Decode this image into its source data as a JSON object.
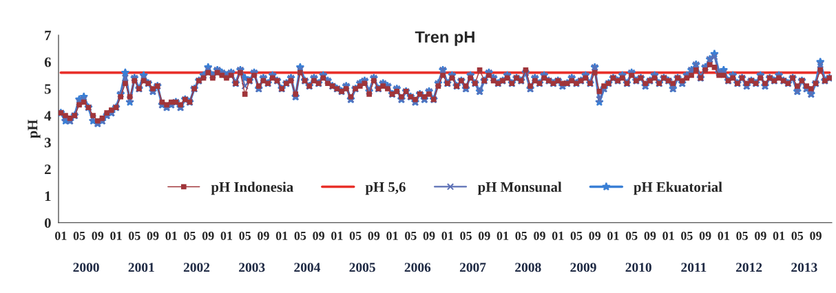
{
  "chart_data": {
    "type": "line",
    "title": "Tren pH",
    "ylabel": "pH",
    "categories": [
      "01",
      null,
      null,
      null,
      "05",
      null,
      null,
      null,
      "09",
      null,
      null,
      null,
      "01",
      null,
      null,
      null,
      "05",
      null,
      null,
      null,
      "09",
      null,
      null,
      null,
      "01",
      null,
      null,
      null,
      "05",
      null,
      null,
      null,
      "09",
      null,
      null,
      null,
      "01",
      null,
      null,
      null,
      "05",
      null,
      null,
      null,
      "09",
      null,
      null,
      null,
      "01",
      null,
      null,
      null,
      "05",
      null,
      null,
      null,
      "09",
      null,
      null,
      null,
      "01",
      null,
      null,
      null,
      "05",
      null,
      null,
      null,
      "09",
      null,
      null,
      null,
      "01",
      null,
      null,
      null,
      "05",
      null,
      null,
      null,
      "09",
      null,
      null,
      null,
      "01",
      null,
      null,
      null,
      "05",
      null,
      null,
      null,
      "09",
      null,
      null,
      null,
      "01",
      null,
      null,
      null,
      "05",
      null,
      null,
      null,
      "09",
      null,
      null,
      null,
      "01",
      null,
      null,
      null,
      "05",
      null,
      null,
      null,
      "09",
      null,
      null,
      null,
      "01",
      null,
      null,
      null,
      "05",
      null,
      null,
      null,
      "09",
      null,
      null,
      null,
      "01",
      null,
      null,
      null,
      "05",
      null,
      null,
      null,
      "09",
      null,
      null,
      null,
      "01",
      null,
      null,
      null,
      "05",
      null,
      null,
      null,
      "09",
      null,
      null,
      null,
      "01",
      null,
      null,
      null,
      "05",
      null,
      null,
      null,
      "09",
      null,
      null,
      null
    ],
    "annotations": [
      "2000",
      "2001",
      "2002",
      "2003",
      "2004",
      "2005",
      "2006",
      "2007",
      "2008",
      "2009",
      "2010",
      "2011",
      "2012",
      "2013"
    ],
    "series": [
      {
        "name": "pH Indonesia",
        "color": "#a0353a",
        "marker": "square",
        "values": [
          4.1,
          4.0,
          3.9,
          4.0,
          4.4,
          4.5,
          4.3,
          4.0,
          3.8,
          3.9,
          4.1,
          4.2,
          4.3,
          4.7,
          5.2,
          4.7,
          5.3,
          5.0,
          5.3,
          5.2,
          5.0,
          5.1,
          4.5,
          4.4,
          4.5,
          4.5,
          4.4,
          4.6,
          4.5,
          5.0,
          5.3,
          5.4,
          5.6,
          5.4,
          5.6,
          5.5,
          5.4,
          5.5,
          5.2,
          5.6,
          4.8,
          5.3,
          5.5,
          5.1,
          5.3,
          5.2,
          5.4,
          5.3,
          5.0,
          5.2,
          5.3,
          4.8,
          5.6,
          5.3,
          5.1,
          5.3,
          5.2,
          5.4,
          5.2,
          5.1,
          5.0,
          4.9,
          5.0,
          4.7,
          5.0,
          5.1,
          5.2,
          4.8,
          5.3,
          5.0,
          5.1,
          5.0,
          4.8,
          4.9,
          4.7,
          4.9,
          4.7,
          4.6,
          4.8,
          4.7,
          4.8,
          4.6,
          5.1,
          5.5,
          5.2,
          5.4,
          5.1,
          5.3,
          5.1,
          5.4,
          5.2,
          5.7,
          5.3,
          5.5,
          5.3,
          5.2,
          5.3,
          5.4,
          5.2,
          5.4,
          5.3,
          5.7,
          5.1,
          5.3,
          5.2,
          5.4,
          5.3,
          5.2,
          5.3,
          5.2,
          5.2,
          5.3,
          5.2,
          5.3,
          5.4,
          5.2,
          5.6,
          4.9,
          5.1,
          5.2,
          5.4,
          5.3,
          5.4,
          5.2,
          5.5,
          5.3,
          5.4,
          5.2,
          5.3,
          5.4,
          5.2,
          5.4,
          5.3,
          5.2,
          5.4,
          5.3,
          5.4,
          5.5,
          5.7,
          5.4,
          5.7,
          5.9,
          5.8,
          5.5,
          5.5,
          5.3,
          5.4,
          5.2,
          5.4,
          5.2,
          5.3,
          5.2,
          5.4,
          5.2,
          5.4,
          5.3,
          5.4,
          5.3,
          5.2,
          5.4,
          5.1,
          5.3,
          5.1,
          5.0,
          5.2,
          5.7,
          5.3,
          5.4
        ]
      },
      {
        "name": "pH 5,6",
        "color": "#e8302a",
        "marker": "none",
        "values": [
          5.6,
          5.6,
          5.6,
          5.6,
          5.6,
          5.6,
          5.6,
          5.6,
          5.6,
          5.6,
          5.6,
          5.6,
          5.6,
          5.6,
          5.6,
          5.6,
          5.6,
          5.6,
          5.6,
          5.6,
          5.6,
          5.6,
          5.6,
          5.6,
          5.6,
          5.6,
          5.6,
          5.6,
          5.6,
          5.6,
          5.6,
          5.6,
          5.6,
          5.6,
          5.6,
          5.6,
          5.6,
          5.6,
          5.6,
          5.6,
          5.6,
          5.6,
          5.6,
          5.6,
          5.6,
          5.6,
          5.6,
          5.6,
          5.6,
          5.6,
          5.6,
          5.6,
          5.6,
          5.6,
          5.6,
          5.6,
          5.6,
          5.6,
          5.6,
          5.6,
          5.6,
          5.6,
          5.6,
          5.6,
          5.6,
          5.6,
          5.6,
          5.6,
          5.6,
          5.6,
          5.6,
          5.6,
          5.6,
          5.6,
          5.6,
          5.6,
          5.6,
          5.6,
          5.6,
          5.6,
          5.6,
          5.6,
          5.6,
          5.6,
          5.6,
          5.6,
          5.6,
          5.6,
          5.6,
          5.6,
          5.6,
          5.6,
          5.6,
          5.6,
          5.6,
          5.6,
          5.6,
          5.6,
          5.6,
          5.6,
          5.6,
          5.6,
          5.6,
          5.6,
          5.6,
          5.6,
          5.6,
          5.6,
          5.6,
          5.6,
          5.6,
          5.6,
          5.6,
          5.6,
          5.6,
          5.6,
          5.6,
          5.6,
          5.6,
          5.6,
          5.6,
          5.6,
          5.6,
          5.6,
          5.6,
          5.6,
          5.6,
          5.6,
          5.6,
          5.6,
          5.6,
          5.6,
          5.6,
          5.6,
          5.6,
          5.6,
          5.6,
          5.6,
          5.6,
          5.6,
          5.6,
          5.6,
          5.6,
          5.6,
          5.6,
          5.6,
          5.6,
          5.6,
          5.6,
          5.6,
          5.6,
          5.6,
          5.6,
          5.6,
          5.6,
          5.6,
          5.6,
          5.6,
          5.6,
          5.6,
          5.6,
          5.6,
          5.6,
          5.6,
          5.6,
          5.6,
          5.6,
          5.6
        ]
      },
      {
        "name": "pH Monsunal",
        "color": "#5b6fb5",
        "marker": "cross",
        "values": [
          4.1,
          3.9,
          3.8,
          4.0,
          4.5,
          4.6,
          4.3,
          3.9,
          3.7,
          3.8,
          4.0,
          4.1,
          4.3,
          4.8,
          5.4,
          4.6,
          5.4,
          5.0,
          5.4,
          5.2,
          4.9,
          5.1,
          4.4,
          4.3,
          4.4,
          4.5,
          4.3,
          4.6,
          4.5,
          5.0,
          5.3,
          5.5,
          5.7,
          5.5,
          5.7,
          5.6,
          5.5,
          5.6,
          5.2,
          5.7,
          5.1,
          5.3,
          5.6,
          5.0,
          5.4,
          5.2,
          5.5,
          5.3,
          5.0,
          5.2,
          5.4,
          4.7,
          5.7,
          5.3,
          5.1,
          5.4,
          5.2,
          5.5,
          5.3,
          5.1,
          5.0,
          4.9,
          5.1,
          4.6,
          5.0,
          5.2,
          5.3,
          4.9,
          5.4,
          5.0,
          5.2,
          5.1,
          4.8,
          5.0,
          4.6,
          4.9,
          4.7,
          4.5,
          4.8,
          4.6,
          4.9,
          4.6,
          5.2,
          5.7,
          5.2,
          5.5,
          5.1,
          5.3,
          5.0,
          5.5,
          5.2,
          4.9,
          5.3,
          5.6,
          5.4,
          5.2,
          5.3,
          5.5,
          5.2,
          5.4,
          5.3,
          5.6,
          5.0,
          5.4,
          5.2,
          5.5,
          5.3,
          5.2,
          5.3,
          5.1,
          5.2,
          5.4,
          5.2,
          5.3,
          5.5,
          5.2,
          5.8,
          4.6,
          5.0,
          5.2,
          5.4,
          5.3,
          5.5,
          5.2,
          5.6,
          5.3,
          5.4,
          5.1,
          5.3,
          5.5,
          5.2,
          5.4,
          5.3,
          5.0,
          5.4,
          5.2,
          5.5,
          5.7,
          5.9,
          5.4,
          5.8,
          6.1,
          6.2,
          5.6,
          5.6,
          5.3,
          5.5,
          5.2,
          5.4,
          5.1,
          5.3,
          5.2,
          5.5,
          5.1,
          5.4,
          5.3,
          5.5,
          5.3,
          5.2,
          5.4,
          4.9,
          5.3,
          5.0,
          4.8,
          5.2,
          5.9,
          5.3,
          5.4
        ]
      },
      {
        "name": "pH Ekuatorial",
        "color": "#3a7fd5",
        "marker": "star",
        "values": [
          4.1,
          3.8,
          3.8,
          4.0,
          4.6,
          4.7,
          4.3,
          3.8,
          3.7,
          3.8,
          4.0,
          4.1,
          4.3,
          4.8,
          5.6,
          4.5,
          5.4,
          5.0,
          5.5,
          5.2,
          4.9,
          5.1,
          4.4,
          4.3,
          4.4,
          4.5,
          4.3,
          4.6,
          4.5,
          5.0,
          5.3,
          5.5,
          5.8,
          5.5,
          5.7,
          5.6,
          5.5,
          5.6,
          5.2,
          5.7,
          5.4,
          5.3,
          5.6,
          5.0,
          5.4,
          5.2,
          5.5,
          5.3,
          5.0,
          5.2,
          5.4,
          4.7,
          5.8,
          5.3,
          5.1,
          5.4,
          5.2,
          5.5,
          5.3,
          5.1,
          5.0,
          4.9,
          5.1,
          4.6,
          5.0,
          5.2,
          5.3,
          4.9,
          5.4,
          5.0,
          5.2,
          5.1,
          4.8,
          5.0,
          4.6,
          4.9,
          4.7,
          4.5,
          4.8,
          4.6,
          4.9,
          4.6,
          5.2,
          5.7,
          5.2,
          5.5,
          5.1,
          5.3,
          5.0,
          5.5,
          5.2,
          4.9,
          5.3,
          5.6,
          5.4,
          5.2,
          5.3,
          5.5,
          5.2,
          5.4,
          5.3,
          5.6,
          5.0,
          5.4,
          5.2,
          5.5,
          5.3,
          5.2,
          5.3,
          5.1,
          5.2,
          5.4,
          5.2,
          5.3,
          5.5,
          5.2,
          5.8,
          4.5,
          5.0,
          5.2,
          5.4,
          5.3,
          5.5,
          5.2,
          5.6,
          5.3,
          5.4,
          5.1,
          5.3,
          5.5,
          5.2,
          5.4,
          5.3,
          5.0,
          5.4,
          5.2,
          5.5,
          5.7,
          5.9,
          5.4,
          5.8,
          6.1,
          6.3,
          5.6,
          5.7,
          5.3,
          5.5,
          5.2,
          5.4,
          5.1,
          5.3,
          5.2,
          5.5,
          5.1,
          5.4,
          5.3,
          5.5,
          5.3,
          5.2,
          5.4,
          4.9,
          5.3,
          5.0,
          4.8,
          5.2,
          6.0,
          5.3,
          5.4
        ]
      }
    ],
    "ylim": [
      0,
      7
    ],
    "yticks": [
      0,
      1,
      2,
      3,
      4,
      5,
      6,
      7
    ],
    "grid": false,
    "legend": "bottom"
  }
}
